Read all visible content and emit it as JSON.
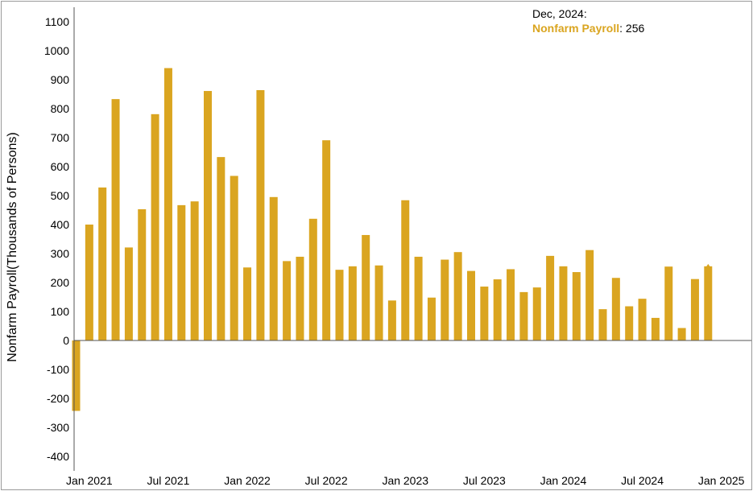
{
  "chart_data": {
    "type": "bar",
    "ylabel": "Nonfarm Payroll(Thousands of Persons)",
    "ylim": [
      -450,
      1150
    ],
    "yticks": [
      1100,
      1000,
      900,
      800,
      700,
      600,
      500,
      400,
      300,
      200,
      100,
      0,
      -100,
      -200,
      -300,
      -400
    ],
    "xtick_labels": [
      "Jan 2021",
      "Jul 2021",
      "Jan 2022",
      "Jul 2022",
      "Jan 2023",
      "Jul 2023",
      "Jan 2024",
      "Jul 2024",
      "Jan 2025"
    ],
    "x_start": "Dec 2020",
    "series": [
      {
        "name": "Nonfarm Payroll",
        "color": "#DAA520",
        "values": [
          -243,
          400,
          528,
          833,
          321,
          453,
          781,
          940,
          467,
          480,
          861,
          633,
          568,
          252,
          864,
          495,
          274,
          289,
          420,
          691,
          244,
          256,
          364,
          259,
          138,
          484,
          289,
          148,
          279,
          305,
          240,
          186,
          211,
          246,
          167,
          183,
          292,
          256,
          236,
          312,
          108,
          216,
          118,
          144,
          78,
          255,
          43,
          212,
          256
        ]
      }
    ],
    "tooltip": {
      "date": "Dec, 2024:",
      "series": "Nonfarm Payroll",
      "value": "256"
    }
  }
}
